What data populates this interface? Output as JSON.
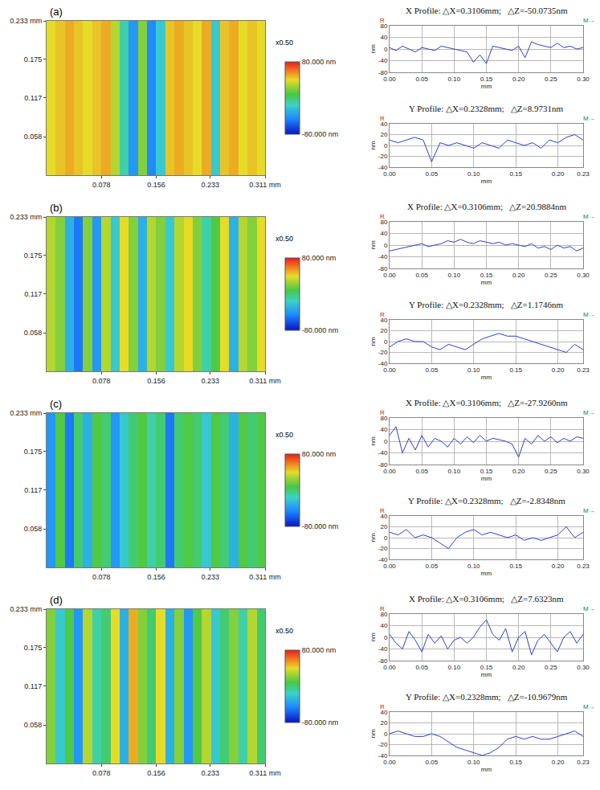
{
  "chart_data": [
    {
      "type": "heatmap",
      "annotations": [
        "(a)"
      ],
      "x_edges": [
        0,
        0.013,
        0.026,
        0.039,
        0.052,
        0.065,
        0.078,
        0.091,
        0.104,
        0.117,
        0.13,
        0.143,
        0.156,
        0.169,
        0.182,
        0.195,
        0.208,
        0.221,
        0.234,
        0.247,
        0.26,
        0.273,
        0.286,
        0.299,
        0.311
      ],
      "y_edges": [
        0,
        0.233
      ],
      "cells": [
        [
          40,
          45,
          50,
          45,
          40,
          45,
          50,
          30,
          -10,
          -40,
          20,
          -45,
          -20,
          45,
          50,
          45,
          40,
          50,
          -20,
          45,
          50,
          40,
          45,
          40
        ]
      ],
      "xlim": [
        0,
        0.311
      ],
      "ylim": [
        0,
        0.233
      ],
      "xticks": [
        0.078,
        0.156,
        0.233,
        {
          "value": 0.311,
          "label": "0.311 mm"
        }
      ],
      "yticks": [
        0.058,
        0.117,
        0.175,
        {
          "value": 0.233,
          "label": "0.233 mm"
        }
      ],
      "colorbar": {
        "range": [
          -80,
          80
        ],
        "ticks": [
          {
            "value": 80,
            "label": "80.000 nm"
          },
          {
            "value": -80,
            "label": "-80.000 nm"
          }
        ],
        "label": "x0.50"
      }
    },
    {
      "type": "line",
      "title": "X Profile: △X=0.3106mm;   △Z=-50.0735nm",
      "x_label": "mm",
      "y_label": "nm",
      "annotations": [
        "R",
        "M→"
      ],
      "color": "#2f3fd0",
      "grid": true,
      "x": [
        0,
        0.01,
        0.02,
        0.03,
        0.04,
        0.05,
        0.06,
        0.07,
        0.08,
        0.09,
        0.1,
        0.11,
        0.12,
        0.13,
        0.14,
        0.15,
        0.16,
        0.17,
        0.18,
        0.19,
        0.2,
        0.21,
        0.22,
        0.23,
        0.24,
        0.25,
        0.26,
        0.27,
        0.28,
        0.29,
        0.3
      ],
      "values": [
        5,
        -5,
        10,
        0,
        -10,
        5,
        0,
        -5,
        10,
        5,
        0,
        -5,
        -10,
        -45,
        -20,
        -50,
        10,
        5,
        0,
        -5,
        10,
        -30,
        25,
        15,
        10,
        5,
        20,
        5,
        10,
        0,
        5
      ],
      "xlim": [
        0,
        0.3
      ],
      "ylim": [
        -80,
        80
      ],
      "xticks": [
        {
          "value": 0,
          "label": "0.00"
        },
        {
          "value": 0.05,
          "label": "0.05"
        },
        {
          "value": 0.1,
          "label": "0.10"
        },
        {
          "value": 0.15,
          "label": "0.15"
        },
        {
          "value": 0.2,
          "label": "0.20"
        },
        {
          "value": 0.25,
          "label": "0.25"
        },
        {
          "value": 0.3,
          "label": "0.30"
        }
      ],
      "yticks": [
        -80,
        -40,
        0,
        40,
        80
      ]
    },
    {
      "type": "line",
      "title": "Y Profile: △X=0.2328mm;   △Z=8.9731nm",
      "x_label": "mm",
      "y_label": "nm",
      "annotations": [
        "R",
        "M→"
      ],
      "color": "#2f3fd0",
      "grid": true,
      "x": [
        0,
        0.01,
        0.02,
        0.03,
        0.04,
        0.05,
        0.06,
        0.07,
        0.08,
        0.09,
        0.1,
        0.11,
        0.12,
        0.13,
        0.14,
        0.15,
        0.16,
        0.17,
        0.18,
        0.19,
        0.2,
        0.21,
        0.22,
        0.23
      ],
      "values": [
        10,
        5,
        10,
        15,
        10,
        -30,
        5,
        0,
        5,
        0,
        -5,
        5,
        0,
        -5,
        10,
        5,
        0,
        5,
        -5,
        10,
        5,
        15,
        20,
        10
      ],
      "xlim": [
        0,
        0.23
      ],
      "ylim": [
        -40,
        40
      ],
      "xticks": [
        {
          "value": 0,
          "label": "0.00"
        },
        {
          "value": 0.05,
          "label": "0.05"
        },
        {
          "value": 0.1,
          "label": "0.10"
        },
        {
          "value": 0.15,
          "label": "0.15"
        },
        {
          "value": 0.2,
          "label": "0.20"
        },
        {
          "value": 0.23,
          "label": "0.23"
        }
      ],
      "yticks": [
        -40,
        -20,
        0,
        20,
        40
      ]
    },
    {
      "type": "heatmap",
      "annotations": [
        "(b)"
      ],
      "x_edges": [
        0,
        0.013,
        0.026,
        0.039,
        0.052,
        0.065,
        0.078,
        0.091,
        0.104,
        0.117,
        0.13,
        0.143,
        0.156,
        0.169,
        0.182,
        0.195,
        0.208,
        0.221,
        0.234,
        0.247,
        0.26,
        0.273,
        0.286,
        0.299,
        0.311
      ],
      "y_edges": [
        0,
        0.233
      ],
      "cells": [
        [
          30,
          20,
          -30,
          -50,
          20,
          -40,
          30,
          -20,
          40,
          20,
          -30,
          30,
          20,
          -20,
          30,
          40,
          20,
          -10,
          10,
          40,
          -30,
          30,
          20,
          40
        ]
      ],
      "xlim": [
        0,
        0.311
      ],
      "ylim": [
        0,
        0.233
      ],
      "xticks": [
        0.078,
        0.156,
        0.233,
        {
          "value": 0.311,
          "label": "0.311 mm"
        }
      ],
      "yticks": [
        0.058,
        0.117,
        0.175,
        {
          "value": 0.233,
          "label": "0.233 mm"
        }
      ],
      "colorbar": {
        "range": [
          -80,
          80
        ],
        "ticks": [
          {
            "value": 80,
            "label": "80.000 nm"
          },
          {
            "value": -80,
            "label": "-80.000 nm"
          }
        ],
        "label": "x0.50"
      }
    },
    {
      "type": "line",
      "title": "X Profile: △X=0.3106mm;   △Z=20.9884nm",
      "x_label": "mm",
      "y_label": "nm",
      "annotations": [
        "R",
        "M→"
      ],
      "color": "#2f3fd0",
      "grid": true,
      "x": [
        0,
        0.01,
        0.02,
        0.03,
        0.04,
        0.05,
        0.06,
        0.07,
        0.08,
        0.09,
        0.1,
        0.11,
        0.12,
        0.13,
        0.14,
        0.15,
        0.16,
        0.17,
        0.18,
        0.19,
        0.2,
        0.21,
        0.22,
        0.23,
        0.24,
        0.25,
        0.26,
        0.27,
        0.28,
        0.29,
        0.3
      ],
      "values": [
        -20,
        -15,
        -10,
        -5,
        0,
        5,
        -5,
        0,
        5,
        15,
        10,
        20,
        10,
        5,
        15,
        10,
        5,
        10,
        0,
        5,
        0,
        -5,
        5,
        -10,
        -5,
        -15,
        0,
        -10,
        -5,
        -20,
        -10
      ],
      "xlim": [
        0,
        0.3
      ],
      "ylim": [
        -80,
        80
      ],
      "xticks": [
        {
          "value": 0,
          "label": "0.00"
        },
        {
          "value": 0.05,
          "label": "0.05"
        },
        {
          "value": 0.1,
          "label": "0.10"
        },
        {
          "value": 0.15,
          "label": "0.15"
        },
        {
          "value": 0.2,
          "label": "0.20"
        },
        {
          "value": 0.25,
          "label": "0.25"
        },
        {
          "value": 0.3,
          "label": "0.30"
        }
      ],
      "yticks": [
        -80,
        -40,
        0,
        40,
        80
      ]
    },
    {
      "type": "line",
      "title": "Y Profile: △X=0.2328mm;   △Z=1.1746nm",
      "x_label": "mm",
      "y_label": "nm",
      "annotations": [
        "R",
        "M→"
      ],
      "color": "#2f3fd0",
      "grid": true,
      "x": [
        0,
        0.01,
        0.02,
        0.03,
        0.04,
        0.05,
        0.06,
        0.07,
        0.08,
        0.09,
        0.1,
        0.11,
        0.12,
        0.13,
        0.14,
        0.15,
        0.16,
        0.17,
        0.18,
        0.19,
        0.2,
        0.21,
        0.22,
        0.23
      ],
      "values": [
        -10,
        0,
        5,
        0,
        0,
        -10,
        -15,
        -5,
        -10,
        -15,
        -5,
        5,
        10,
        15,
        10,
        10,
        5,
        0,
        -5,
        -10,
        -15,
        -20,
        -5,
        -15
      ],
      "xlim": [
        0,
        0.23
      ],
      "ylim": [
        -40,
        40
      ],
      "xticks": [
        {
          "value": 0,
          "label": "0.00"
        },
        {
          "value": 0.05,
          "label": "0.05"
        },
        {
          "value": 0.1,
          "label": "0.10"
        },
        {
          "value": 0.15,
          "label": "0.15"
        },
        {
          "value": 0.2,
          "label": "0.20"
        },
        {
          "value": 0.23,
          "label": "0.23"
        }
      ],
      "yticks": [
        -40,
        -20,
        0,
        20,
        40
      ]
    },
    {
      "type": "heatmap",
      "annotations": [
        "(c)"
      ],
      "x_edges": [
        0,
        0.013,
        0.026,
        0.039,
        0.052,
        0.065,
        0.078,
        0.091,
        0.104,
        0.117,
        0.13,
        0.143,
        0.156,
        0.169,
        0.182,
        0.195,
        0.208,
        0.221,
        0.234,
        0.247,
        0.26,
        0.273,
        0.286,
        0.299,
        0.311
      ],
      "y_edges": [
        0,
        0.233
      ],
      "cells": [
        [
          -40,
          10,
          -50,
          0,
          -30,
          10,
          0,
          -40,
          -20,
          0,
          10,
          -10,
          0,
          -50,
          0,
          10,
          0,
          -20,
          10,
          0,
          -30,
          10,
          0,
          10
        ]
      ],
      "xlim": [
        0,
        0.311
      ],
      "ylim": [
        0,
        0.233
      ],
      "xticks": [
        0.078,
        0.156,
        0.233,
        {
          "value": 0.311,
          "label": "0.311 mm"
        }
      ],
      "yticks": [
        0.058,
        0.117,
        0.175,
        {
          "value": 0.233,
          "label": "0.233 mm"
        }
      ],
      "colorbar": {
        "range": [
          -80,
          80
        ],
        "ticks": [
          {
            "value": 80,
            "label": "80.000 nm"
          },
          {
            "value": -80,
            "label": "-80.000 nm"
          }
        ],
        "label": "x0.50"
      }
    },
    {
      "type": "line",
      "title": "X Profile: △X=0.3106mm;   △Z=-27.9260nm",
      "x_label": "mm",
      "y_label": "nm",
      "annotations": [
        "R",
        "M→"
      ],
      "color": "#2f3fd0",
      "grid": true,
      "x": [
        0,
        0.01,
        0.02,
        0.03,
        0.04,
        0.05,
        0.06,
        0.07,
        0.08,
        0.09,
        0.1,
        0.11,
        0.12,
        0.13,
        0.14,
        0.15,
        0.16,
        0.17,
        0.18,
        0.19,
        0.2,
        0.21,
        0.22,
        0.23,
        0.24,
        0.25,
        0.26,
        0.27,
        0.28,
        0.29,
        0.3
      ],
      "values": [
        20,
        50,
        -40,
        10,
        -30,
        20,
        -20,
        10,
        0,
        -20,
        10,
        -10,
        15,
        -5,
        20,
        0,
        10,
        5,
        0,
        -10,
        -55,
        10,
        -10,
        20,
        0,
        15,
        -5,
        10,
        0,
        15,
        10
      ],
      "xlim": [
        0,
        0.3
      ],
      "ylim": [
        -80,
        80
      ],
      "xticks": [
        {
          "value": 0,
          "label": "0.00"
        },
        {
          "value": 0.05,
          "label": "0.05"
        },
        {
          "value": 0.1,
          "label": "0.10"
        },
        {
          "value": 0.15,
          "label": "0.15"
        },
        {
          "value": 0.2,
          "label": "0.20"
        },
        {
          "value": 0.25,
          "label": "0.25"
        },
        {
          "value": 0.3,
          "label": "0.30"
        }
      ],
      "yticks": [
        -80,
        -40,
        0,
        40,
        80
      ]
    },
    {
      "type": "line",
      "title": "Y Profile: △X=0.2328mm;   △Z=-2.8348nm",
      "x_label": "mm",
      "y_label": "nm",
      "annotations": [
        "R",
        "M→"
      ],
      "color": "#2f3fd0",
      "grid": true,
      "x": [
        0,
        0.01,
        0.02,
        0.03,
        0.04,
        0.05,
        0.06,
        0.07,
        0.08,
        0.09,
        0.1,
        0.11,
        0.12,
        0.13,
        0.14,
        0.15,
        0.16,
        0.17,
        0.18,
        0.19,
        0.2,
        0.21,
        0.22,
        0.23
      ],
      "values": [
        10,
        5,
        15,
        0,
        5,
        0,
        -10,
        -20,
        0,
        10,
        15,
        5,
        10,
        5,
        0,
        5,
        -5,
        0,
        -5,
        0,
        5,
        20,
        0,
        10
      ],
      "xlim": [
        0,
        0.23
      ],
      "ylim": [
        -40,
        40
      ],
      "xticks": [
        {
          "value": 0,
          "label": "0.00"
        },
        {
          "value": 0.05,
          "label": "0.05"
        },
        {
          "value": 0.1,
          "label": "0.10"
        },
        {
          "value": 0.15,
          "label": "0.15"
        },
        {
          "value": 0.2,
          "label": "0.20"
        },
        {
          "value": 0.23,
          "label": "0.23"
        }
      ],
      "yticks": [
        -40,
        -20,
        0,
        20,
        40
      ]
    },
    {
      "type": "heatmap",
      "annotations": [
        "(d)"
      ],
      "x_edges": [
        0,
        0.013,
        0.026,
        0.039,
        0.052,
        0.065,
        0.078,
        0.091,
        0.104,
        0.117,
        0.13,
        0.143,
        0.156,
        0.169,
        0.182,
        0.195,
        0.208,
        0.221,
        0.234,
        0.247,
        0.26,
        0.273,
        0.286,
        0.299,
        0.311
      ],
      "y_edges": [
        0,
        0.233
      ],
      "cells": [
        [
          20,
          -20,
          10,
          -40,
          30,
          -10,
          0,
          40,
          -30,
          50,
          20,
          0,
          40,
          -30,
          20,
          -40,
          10,
          30,
          -20,
          0,
          20,
          -10,
          30,
          0
        ]
      ],
      "xlim": [
        0,
        0.311
      ],
      "ylim": [
        0,
        0.233
      ],
      "xticks": [
        0.078,
        0.156,
        0.233,
        {
          "value": 0.311,
          "label": "0.311 mm"
        }
      ],
      "yticks": [
        0.058,
        0.117,
        0.175,
        {
          "value": 0.233,
          "label": "0.233 mm"
        }
      ],
      "colorbar": {
        "range": [
          -80,
          80
        ],
        "ticks": [
          {
            "value": 80,
            "label": "80.000 nm"
          },
          {
            "value": -80,
            "label": "-80.000 nm"
          }
        ],
        "label": "x0.50"
      }
    },
    {
      "type": "line",
      "title": "X Profile: △X=0.3106mm;   △Z=7.6323nm",
      "x_label": "mm",
      "y_label": "nm",
      "annotations": [
        "R",
        "M→"
      ],
      "color": "#2f3fd0",
      "grid": true,
      "x": [
        0,
        0.01,
        0.02,
        0.03,
        0.04,
        0.05,
        0.06,
        0.07,
        0.08,
        0.09,
        0.1,
        0.11,
        0.12,
        0.13,
        0.14,
        0.15,
        0.16,
        0.17,
        0.18,
        0.19,
        0.2,
        0.21,
        0.22,
        0.23,
        0.24,
        0.25,
        0.26,
        0.27,
        0.28,
        0.29,
        0.3
      ],
      "values": [
        10,
        -20,
        -40,
        20,
        -10,
        -50,
        10,
        -20,
        5,
        -40,
        -10,
        0,
        -20,
        0,
        35,
        60,
        10,
        -10,
        30,
        -50,
        0,
        20,
        -60,
        -10,
        10,
        -20,
        -50,
        0,
        20,
        -20,
        10
      ],
      "xlim": [
        0,
        0.3
      ],
      "ylim": [
        -80,
        80
      ],
      "xticks": [
        {
          "value": 0,
          "label": "0.00"
        },
        {
          "value": 0.05,
          "label": "0.05"
        },
        {
          "value": 0.1,
          "label": "0.10"
        },
        {
          "value": 0.15,
          "label": "0.15"
        },
        {
          "value": 0.2,
          "label": "0.20"
        },
        {
          "value": 0.25,
          "label": "0.25"
        },
        {
          "value": 0.3,
          "label": "0.30"
        }
      ],
      "yticks": [
        -80,
        -40,
        0,
        40,
        80
      ]
    },
    {
      "type": "line",
      "title": "Y Profile: △X=0.2328mm;   △Z=-10.9679nm",
      "x_label": "mm",
      "y_label": "nm",
      "annotations": [
        "R",
        "M→"
      ],
      "color": "#2f3fd0",
      "grid": true,
      "x": [
        0,
        0.01,
        0.02,
        0.03,
        0.04,
        0.05,
        0.06,
        0.07,
        0.08,
        0.09,
        0.1,
        0.11,
        0.12,
        0.13,
        0.14,
        0.15,
        0.16,
        0.17,
        0.18,
        0.19,
        0.2,
        0.21,
        0.22,
        0.23
      ],
      "values": [
        0,
        5,
        0,
        -5,
        -5,
        0,
        -5,
        -15,
        -25,
        -30,
        -35,
        -40,
        -35,
        -25,
        -10,
        -5,
        -10,
        -5,
        -10,
        -10,
        -5,
        0,
        5,
        -5
      ],
      "xlim": [
        0,
        0.23
      ],
      "ylim": [
        -40,
        40
      ],
      "xticks": [
        {
          "value": 0,
          "label": "0.00"
        },
        {
          "value": 0.05,
          "label": "0.05"
        },
        {
          "value": 0.1,
          "label": "0.10"
        },
        {
          "value": 0.15,
          "label": "0.15"
        },
        {
          "value": 0.2,
          "label": "0.20"
        },
        {
          "value": 0.23,
          "label": "0.23"
        }
      ],
      "yticks": [
        -40,
        -20,
        0,
        20,
        40
      ]
    }
  ]
}
